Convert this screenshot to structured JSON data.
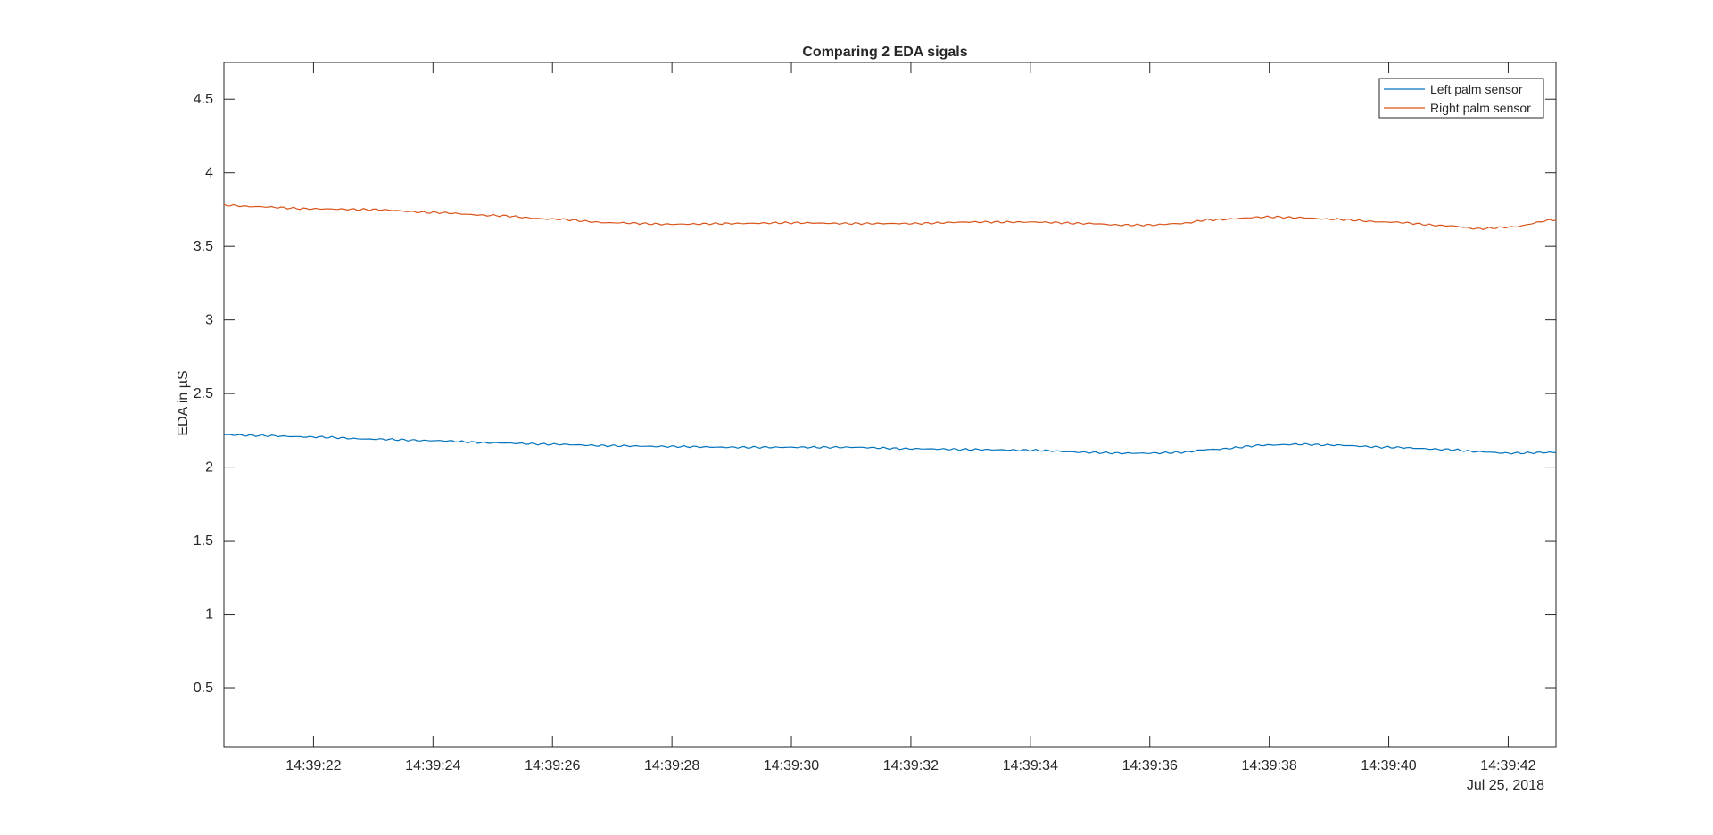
{
  "chart_data": {
    "type": "line",
    "title": "Comparing 2 EDA sigals",
    "xlabel": "",
    "ylabel": "EDA in µS",
    "date_label": "Jul 25, 2018",
    "x_range_seconds": [
      "14:39:20.5",
      "14:39:42.8"
    ],
    "ylim": [
      0.1,
      4.75
    ],
    "x_ticks": [
      "14:39:22",
      "14:39:24",
      "14:39:26",
      "14:39:28",
      "14:39:30",
      "14:39:32",
      "14:39:34",
      "14:39:36",
      "14:39:38",
      "14:39:40",
      "14:39:42"
    ],
    "y_ticks": [
      0.5,
      1,
      1.5,
      2,
      2.5,
      3,
      3.5,
      4,
      4.5
    ],
    "y_tick_labels": [
      "0.5",
      "1",
      "1.5",
      "2",
      "2.5",
      "3",
      "3.5",
      "4",
      "4.5"
    ],
    "legend_position": "top-right",
    "grid": false,
    "x": [
      "14:39:20.5",
      "14:39:21",
      "14:39:22",
      "14:39:23",
      "14:39:24",
      "14:39:25",
      "14:39:26",
      "14:39:27",
      "14:39:28",
      "14:39:29",
      "14:39:30",
      "14:39:31",
      "14:39:32",
      "14:39:33",
      "14:39:34",
      "14:39:35",
      "14:39:35.5",
      "14:39:36",
      "14:39:36.5",
      "14:39:37",
      "14:39:38",
      "14:39:38.5",
      "14:39:39",
      "14:39:40",
      "14:39:41",
      "14:39:41.5",
      "14:39:42",
      "14:39:42.8"
    ],
    "series": [
      {
        "name": "Left palm sensor",
        "color": "#0072BD",
        "values": [
          2.22,
          2.215,
          2.205,
          2.19,
          2.18,
          2.165,
          2.155,
          2.145,
          2.14,
          2.135,
          2.135,
          2.135,
          2.125,
          2.12,
          2.115,
          2.1,
          2.095,
          2.095,
          2.1,
          2.12,
          2.15,
          2.155,
          2.15,
          2.135,
          2.12,
          2.105,
          2.095,
          2.1
        ]
      },
      {
        "name": "Right palm sensor",
        "color": "#D95319",
        "values": [
          3.78,
          3.77,
          3.755,
          3.75,
          3.73,
          3.71,
          3.685,
          3.66,
          3.65,
          3.655,
          3.66,
          3.655,
          3.655,
          3.665,
          3.665,
          3.655,
          3.645,
          3.645,
          3.655,
          3.68,
          3.7,
          3.695,
          3.685,
          3.665,
          3.64,
          3.62,
          3.63,
          3.68
        ]
      }
    ]
  }
}
